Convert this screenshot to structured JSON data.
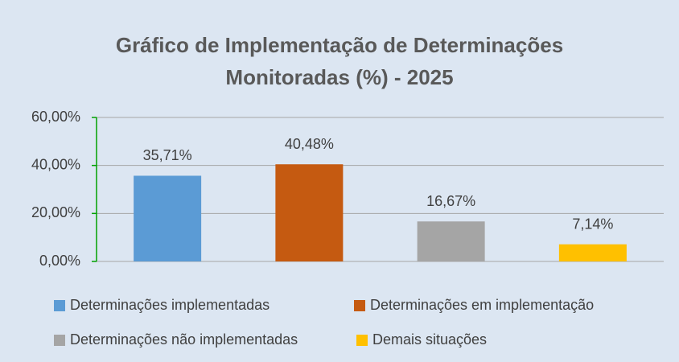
{
  "chart_data": {
    "type": "bar",
    "title": "Gráfico de Implementação de Determinações Monitoradas (%) - 2025",
    "series": [
      {
        "name": "Determinações implementadas",
        "color": "#5b9bd5",
        "values": [
          35.71
        ],
        "value_labels": [
          "35,71%"
        ]
      },
      {
        "name": "Determinações em implementação",
        "color": "#c55a11",
        "values": [
          40.48
        ],
        "value_labels": [
          "40,48%"
        ]
      },
      {
        "name": "Determinações não implementadas",
        "color": "#a5a5a5",
        "values": [
          16.67
        ],
        "value_labels": [
          "16,67%"
        ]
      },
      {
        "name": "Demais situações",
        "color": "#ffc000",
        "values": [
          7.14
        ],
        "value_labels": [
          "7,14%"
        ]
      }
    ],
    "ylim": [
      0,
      60
    ],
    "yticks": [
      {
        "value": 0,
        "label": "0,00%"
      },
      {
        "value": 20,
        "label": "20,00%"
      },
      {
        "value": 40,
        "label": "40,00%"
      },
      {
        "value": 60,
        "label": "60,00%"
      }
    ],
    "grid": true,
    "legend": "bottom"
  }
}
